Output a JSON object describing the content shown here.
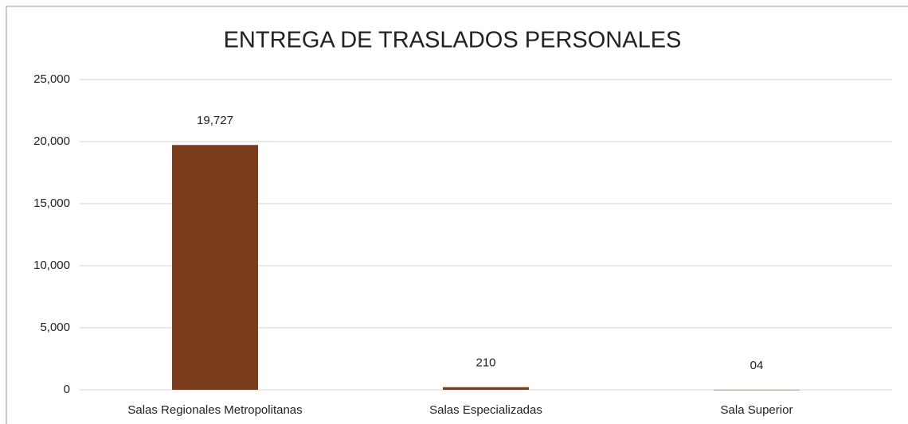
{
  "chart_data": {
    "type": "bar",
    "title": "ENTREGA DE TRASLADOS PERSONALES",
    "categories": [
      "Salas Regionales Metropolitanas",
      "Salas Especializadas",
      "Sala Superior"
    ],
    "values": [
      19727,
      210,
      4
    ],
    "value_labels": [
      "19,727",
      "210",
      "04"
    ],
    "color": "#7b3c1b",
    "ylim": [
      0,
      25000
    ],
    "yticks": [
      0,
      {
        "value": 5000,
        "label": "5,000"
      },
      {
        "value": 10000,
        "label": "10,000"
      },
      {
        "value": 15000,
        "label": "15,000"
      },
      {
        "value": 20000,
        "label": "20,000"
      },
      {
        "value": 25000,
        "label": "25,000"
      }
    ],
    "grid": true
  }
}
